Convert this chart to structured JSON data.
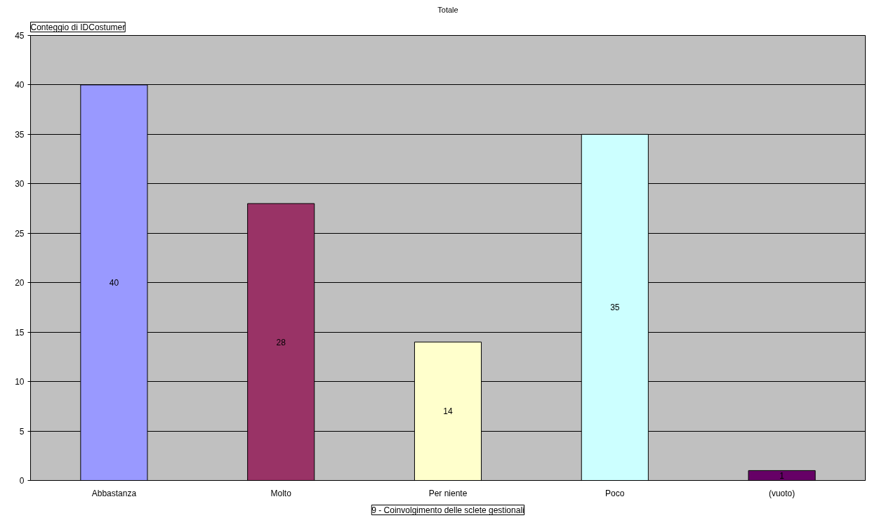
{
  "chart_data": {
    "type": "bar",
    "title": "Totale",
    "xlabel": "9 - Coinvolgimento delle sclete gestionali",
    "ylabel": "Conteggio di IDCostumer",
    "categories": [
      "Abbastanza",
      "Molto",
      "Per niente",
      "Poco",
      "(vuoto)"
    ],
    "values": [
      40,
      28,
      14,
      35,
      1
    ],
    "colors": [
      "#9999ff",
      "#993366",
      "#ffffcc",
      "#ccffff",
      "#660066"
    ],
    "ylim": [
      0,
      45
    ],
    "yticks": [
      0,
      5,
      10,
      15,
      20,
      25,
      30,
      35,
      40,
      45
    ],
    "grid": "y",
    "data_labels": true
  }
}
